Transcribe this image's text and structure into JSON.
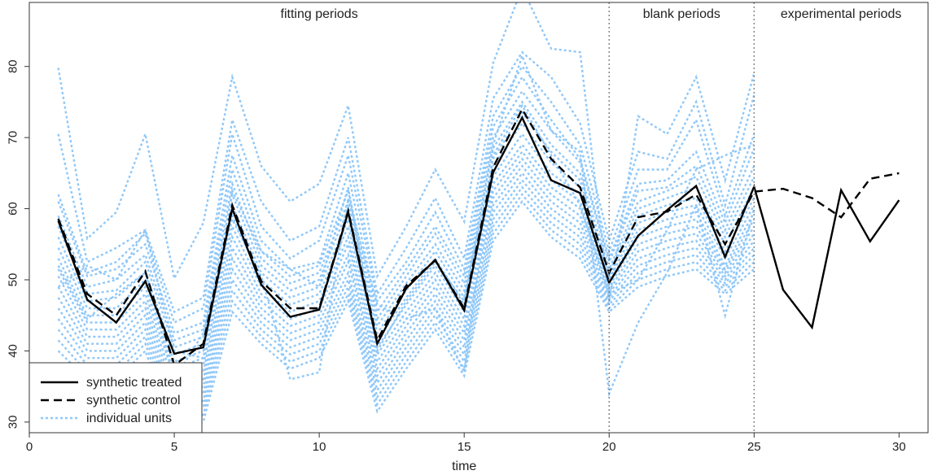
{
  "chart_data": {
    "type": "line",
    "xlabel": "time",
    "ylabel": "",
    "xlim": [
      0,
      31
    ],
    "ylim": [
      28.5,
      89
    ],
    "xticks": [
      "0",
      "5",
      "10",
      "15",
      "20",
      "25",
      "30"
    ],
    "yticks": [
      "30",
      "40",
      "50",
      "60",
      "70",
      "80"
    ],
    "period_labels": [
      {
        "text": "fitting periods",
        "x": 10
      },
      {
        "text": "blank periods",
        "x": 22.5
      },
      {
        "text": "experimental periods",
        "x": 28
      }
    ],
    "vlines": [
      20,
      25
    ],
    "colors": {
      "treated": "#000000",
      "control": "#000000",
      "units": "#90c8f8"
    },
    "legend": {
      "position": "bottom-left",
      "entries": [
        "synthetic treated",
        "synthetic control",
        "individual units"
      ]
    },
    "series": [
      {
        "name": "synthetic treated",
        "style": "solid",
        "x": [
          1,
          2,
          3,
          4,
          5,
          6,
          7,
          8,
          9,
          10,
          11,
          12,
          13,
          14,
          15,
          16,
          17,
          18,
          19,
          20,
          21,
          22,
          23,
          24,
          25,
          26,
          27,
          28,
          29,
          30
        ],
        "values": [
          58.3,
          47.2,
          44.0,
          49.8,
          39.6,
          40.5,
          60.0,
          49.3,
          44.8,
          45.8,
          59.5,
          41.0,
          48.8,
          52.8,
          45.7,
          65.1,
          72.8,
          64.0,
          62.2,
          49.6,
          56.2,
          59.8,
          63.2,
          53.2,
          63.1,
          48.6,
          43.3,
          62.6,
          55.4,
          61.2
        ]
      },
      {
        "name": "synthetic control",
        "style": "dashed",
        "x": [
          1,
          2,
          3,
          4,
          5,
          6,
          7,
          8,
          9,
          10,
          11,
          12,
          13,
          14,
          15,
          16,
          17,
          18,
          19,
          20,
          21,
          22,
          23,
          24,
          25,
          26,
          27,
          28,
          29,
          30
        ],
        "values": [
          58.6,
          48.0,
          45.0,
          51.2,
          38.0,
          41.0,
          60.5,
          49.8,
          46.0,
          46.0,
          59.7,
          41.5,
          49.2,
          52.7,
          46.0,
          65.8,
          74.0,
          67.0,
          63.0,
          51.0,
          58.8,
          59.6,
          62.0,
          55.0,
          62.4,
          62.8,
          61.5,
          58.8,
          64.2,
          65.0
        ]
      },
      {
        "name": "individual units",
        "style": "dotted",
        "group": true,
        "x": [
          1,
          2,
          3,
          4,
          5,
          6,
          7,
          8,
          9,
          10,
          11,
          12,
          13,
          14,
          15,
          16,
          17,
          18,
          19,
          20,
          21,
          22,
          23,
          24,
          25
        ],
        "lines": [
          [
            79.8,
            55.8,
            59.5,
            70.5,
            50.2,
            58.0,
            78.5,
            66.0,
            61.0,
            63.5,
            74.5,
            50.5,
            57.5,
            65.5,
            58.2,
            80.5,
            91.0,
            82.5,
            82.0,
            47.0,
            73.0,
            70.5,
            78.5,
            64.0,
            79.0
          ],
          [
            70.5,
            52.5,
            54.5,
            57.0,
            45.5,
            47.5,
            72.5,
            61.0,
            55.5,
            57.5,
            70.0,
            48.0,
            54.5,
            61.5,
            53.0,
            75.5,
            82.0,
            78.5,
            72.0,
            55.5,
            68.0,
            67.0,
            75.0,
            60.5,
            76.0
          ],
          [
            62.0,
            51.0,
            52.5,
            56.5,
            44.0,
            46.0,
            70.5,
            57.5,
            53.0,
            55.5,
            67.5,
            47.0,
            52.5,
            59.5,
            51.5,
            73.0,
            80.0,
            75.0,
            69.0,
            54.0,
            65.5,
            65.5,
            72.5,
            59.0,
            70.5
          ],
          [
            61.0,
            50.5,
            51.5,
            55.0,
            42.5,
            44.0,
            67.5,
            55.5,
            51.5,
            52.5,
            65.0,
            45.5,
            51.5,
            57.5,
            50.5,
            71.5,
            78.5,
            72.5,
            67.0,
            53.0,
            63.5,
            64.0,
            68.0,
            58.0,
            68.5
          ],
          [
            59.0,
            49.0,
            50.0,
            53.5,
            41.5,
            43.0,
            65.5,
            54.0,
            50.5,
            52.0,
            62.5,
            44.5,
            50.5,
            56.5,
            49.5,
            70.0,
            76.5,
            71.0,
            66.5,
            52.5,
            62.5,
            63.0,
            66.0,
            57.0,
            66.0
          ],
          [
            57.5,
            48.0,
            48.5,
            52.5,
            40.5,
            42.0,
            63.5,
            53.0,
            49.5,
            51.0,
            61.0,
            43.5,
            49.5,
            55.0,
            48.5,
            68.5,
            75.0,
            69.0,
            65.0,
            51.5,
            61.0,
            62.5,
            64.5,
            56.0,
            64.5
          ],
          [
            56.0,
            47.0,
            47.5,
            51.0,
            39.5,
            41.0,
            62.0,
            52.0,
            48.5,
            50.0,
            60.0,
            42.5,
            48.5,
            54.0,
            47.5,
            67.0,
            73.5,
            68.0,
            64.0,
            51.0,
            60.0,
            61.5,
            63.0,
            55.0,
            63.0
          ],
          [
            54.5,
            46.0,
            46.0,
            50.0,
            38.5,
            40.0,
            60.5,
            51.0,
            47.5,
            49.0,
            58.5,
            41.5,
            47.5,
            53.0,
            46.5,
            66.0,
            72.0,
            66.5,
            63.0,
            50.5,
            59.0,
            60.5,
            61.5,
            54.0,
            61.5
          ],
          [
            53.0,
            45.0,
            45.0,
            49.0,
            37.5,
            39.0,
            59.0,
            50.0,
            46.5,
            48.0,
            57.5,
            40.5,
            46.5,
            52.0,
            45.5,
            64.5,
            70.5,
            65.0,
            62.0,
            50.0,
            58.0,
            59.5,
            60.5,
            53.0,
            60.5
          ],
          [
            51.5,
            44.0,
            44.0,
            48.0,
            36.5,
            38.0,
            57.5,
            49.0,
            45.5,
            47.0,
            56.0,
            39.5,
            45.5,
            51.0,
            44.5,
            63.5,
            69.0,
            64.0,
            61.0,
            49.5,
            57.0,
            58.5,
            59.5,
            52.0,
            59.5
          ],
          [
            50.5,
            43.0,
            43.0,
            47.0,
            35.5,
            37.0,
            56.0,
            48.0,
            44.5,
            46.0,
            55.0,
            38.5,
            44.5,
            50.0,
            43.5,
            62.5,
            68.0,
            63.0,
            60.0,
            49.0,
            56.0,
            57.5,
            58.5,
            51.5,
            58.5
          ],
          [
            49.0,
            42.0,
            42.0,
            46.0,
            34.5,
            36.0,
            54.5,
            47.0,
            43.5,
            45.0,
            53.5,
            37.5,
            43.5,
            49.0,
            42.5,
            61.5,
            67.0,
            62.0,
            59.0,
            48.5,
            55.0,
            56.5,
            57.5,
            51.0,
            57.5
          ],
          [
            47.5,
            41.0,
            41.0,
            45.0,
            33.5,
            35.0,
            53.0,
            46.0,
            42.5,
            44.0,
            52.5,
            36.5,
            42.5,
            48.0,
            41.5,
            60.5,
            66.0,
            61.0,
            58.0,
            48.0,
            54.0,
            55.5,
            56.5,
            50.5,
            56.5
          ],
          [
            46.0,
            40.0,
            40.0,
            44.0,
            32.5,
            34.0,
            51.5,
            45.0,
            41.5,
            43.0,
            51.0,
            35.5,
            41.5,
            47.0,
            40.5,
            59.5,
            65.0,
            60.0,
            57.0,
            47.5,
            53.0,
            54.5,
            55.5,
            50.0,
            55.5
          ],
          [
            44.5,
            39.0,
            39.0,
            43.0,
            31.5,
            33.0,
            50.0,
            44.0,
            40.5,
            42.0,
            50.0,
            34.5,
            40.5,
            46.0,
            39.5,
            58.5,
            64.0,
            59.0,
            56.0,
            47.0,
            52.0,
            53.5,
            54.5,
            49.5,
            54.5
          ],
          [
            43.0,
            38.0,
            38.0,
            42.0,
            30.5,
            32.0,
            48.5,
            43.0,
            39.5,
            41.0,
            49.0,
            33.5,
            39.5,
            45.0,
            38.5,
            57.5,
            63.0,
            58.0,
            55.0,
            46.5,
            51.0,
            52.5,
            53.5,
            49.0,
            53.5
          ],
          [
            41.5,
            37.0,
            37.0,
            41.0,
            29.5,
            31.0,
            47.0,
            42.0,
            38.5,
            40.0,
            48.0,
            32.5,
            38.5,
            44.0,
            37.5,
            56.5,
            62.0,
            57.0,
            54.0,
            46.0,
            50.0,
            51.5,
            52.5,
            48.5,
            52.5
          ],
          [
            40.0,
            36.0,
            36.0,
            40.0,
            28.5,
            30.0,
            45.5,
            41.0,
            37.5,
            39.0,
            47.0,
            31.5,
            37.5,
            43.0,
            36.5,
            55.5,
            61.0,
            56.0,
            53.0,
            45.5,
            49.0,
            50.5,
            51.5,
            48.0,
            51.5
          ],
          [
            49.0,
            52.0,
            50.0,
            57.0,
            40.0,
            39.0,
            62.5,
            54.0,
            51.5,
            49.0,
            63.0,
            40.0,
            47.0,
            52.5,
            47.0,
            69.0,
            81.5,
            71.0,
            68.0,
            34.0,
            44.0,
            51.0,
            60.5,
            45.0,
            60.0
          ],
          [
            52.0,
            44.5,
            48.0,
            51.0,
            36.0,
            42.5,
            58.5,
            50.5,
            36.0,
            37.0,
            61.5,
            46.5,
            44.5,
            46.0,
            37.0,
            67.5,
            74.5,
            67.5,
            60.5,
            48.0,
            50.0,
            57.0,
            65.5,
            67.5,
            69.0
          ]
        ]
      }
    ]
  }
}
